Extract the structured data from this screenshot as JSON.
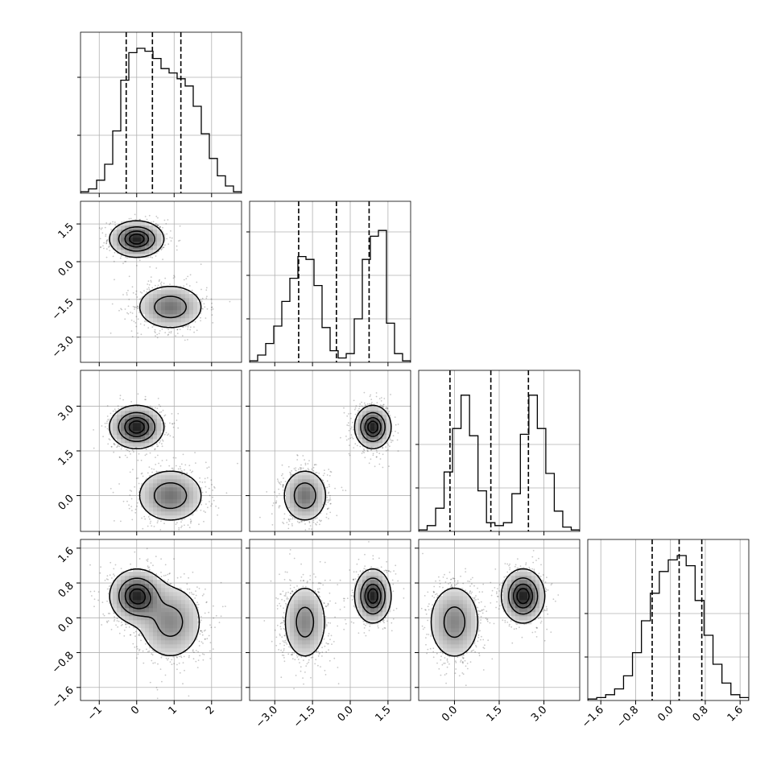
{
  "chart_data": {
    "type": "corner",
    "parameters": [
      "",
      "",
      "",
      ""
    ],
    "axis_ticks": [
      {
        "values": [
          -1,
          0,
          1,
          2
        ],
        "labels": [
          "−1",
          "0",
          "1",
          "2"
        ],
        "range": [
          -1.5,
          2.8
        ]
      },
      {
        "values": [
          -3.0,
          -1.5,
          0.0,
          1.5
        ],
        "labels": [
          "−3.0",
          "−1.5",
          "0.0",
          "1.5"
        ],
        "range": [
          -4.0,
          2.4
        ]
      },
      {
        "values": [
          0.0,
          1.5,
          3.0
        ],
        "labels": [
          "0.0",
          "1.5",
          "3.0"
        ],
        "range": [
          -1.2,
          4.2
        ]
      },
      {
        "values": [
          -1.6,
          -0.8,
          0.0,
          0.8,
          1.6
        ],
        "labels": [
          "−1.6",
          "−0.8",
          "0.0",
          "0.8",
          "1.6"
        ],
        "range": [
          -1.9,
          1.8
        ]
      }
    ],
    "quantiles": [
      [
        -0.28,
        0.42,
        1.18
      ],
      [
        -2.05,
        -0.55,
        0.75
      ],
      [
        -0.15,
        1.22,
        2.48
      ],
      [
        -0.42,
        0.2,
        0.72
      ]
    ],
    "histograms": [
      [
        0.01,
        0.03,
        0.09,
        0.2,
        0.43,
        0.78,
        0.97,
        1.0,
        0.98,
        0.93,
        0.86,
        0.83,
        0.79,
        0.74,
        0.6,
        0.41,
        0.24,
        0.12,
        0.05,
        0.01
      ],
      [
        0.01,
        0.05,
        0.13,
        0.25,
        0.42,
        0.58,
        0.73,
        0.71,
        0.53,
        0.24,
        0.08,
        0.03,
        0.06,
        0.3,
        0.71,
        0.87,
        0.91,
        0.27,
        0.06,
        0.01
      ],
      [
        0.01,
        0.04,
        0.16,
        0.41,
        0.71,
        0.94,
        0.66,
        0.28,
        0.06,
        0.04,
        0.06,
        0.26,
        0.67,
        0.94,
        0.71,
        0.4,
        0.14,
        0.03,
        0.01
      ],
      [
        0.01,
        0.02,
        0.04,
        0.08,
        0.17,
        0.33,
        0.55,
        0.74,
        0.89,
        0.97,
        1.0,
        0.93,
        0.69,
        0.45,
        0.25,
        0.12,
        0.04,
        0.02
      ]
    ],
    "hist_ytick_fractions": [
      [
        0.4,
        0.8
      ],
      [
        0.3,
        0.6,
        0.9
      ],
      [
        0.3,
        0.6
      ],
      [
        0.3,
        0.6
      ]
    ],
    "modes": [
      {
        "weight": 0.5,
        "mean": [
          0.0,
          0.9,
          2.3,
          0.5
        ],
        "sd": [
          0.35,
          0.35,
          0.35,
          0.3
        ]
      },
      {
        "weight": 0.5,
        "mean": [
          0.9,
          -1.8,
          0.0,
          -0.1
        ],
        "sd": [
          0.45,
          0.45,
          0.45,
          0.45
        ]
      }
    ],
    "contour_levels": [
      0.118,
      0.393,
      0.675,
      0.865
    ],
    "grid": true
  }
}
